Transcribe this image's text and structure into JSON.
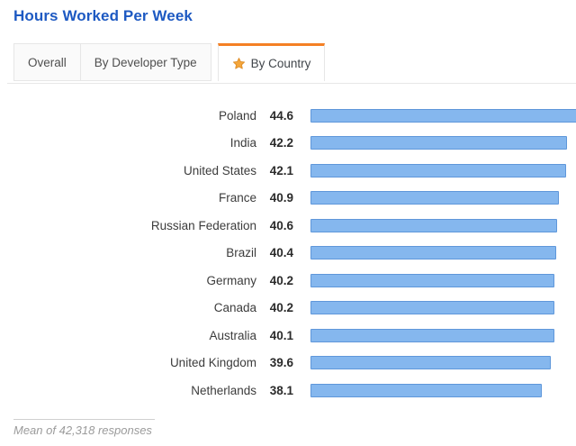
{
  "page_title": "Hours Worked Per Week",
  "tabs": {
    "overall": "Overall",
    "by_developer_type": "By Developer Type",
    "by_country": "By Country"
  },
  "active_tab": "By Country",
  "chart_data": {
    "type": "bar",
    "orientation": "horizontal",
    "title": "Hours Worked Per Week",
    "categories": [
      "Poland",
      "India",
      "United States",
      "France",
      "Russian Federation",
      "Brazil",
      "Germany",
      "Canada",
      "Australia",
      "United Kingdom",
      "Netherlands"
    ],
    "values": [
      44.6,
      42.2,
      42.1,
      40.9,
      40.6,
      40.4,
      40.2,
      40.2,
      40.1,
      39.6,
      38.1
    ],
    "xlabel": "",
    "ylabel": "",
    "xlim": [
      0,
      44.6
    ],
    "grid": false,
    "legend": false,
    "value_labels_shown": true,
    "bar_fill": "#85b7ee",
    "bar_border": "#5f97da",
    "note": "Mean of 42,318 responses"
  },
  "footer_note": "Mean of 42,318 responses",
  "colors": {
    "title": "#1d59c2",
    "tab_active_accent": "#f48024",
    "star_fill": "#f4a63b",
    "star_border": "#de8c25",
    "bar_fill": "#85b7ee",
    "bar_border": "#5f97da"
  }
}
